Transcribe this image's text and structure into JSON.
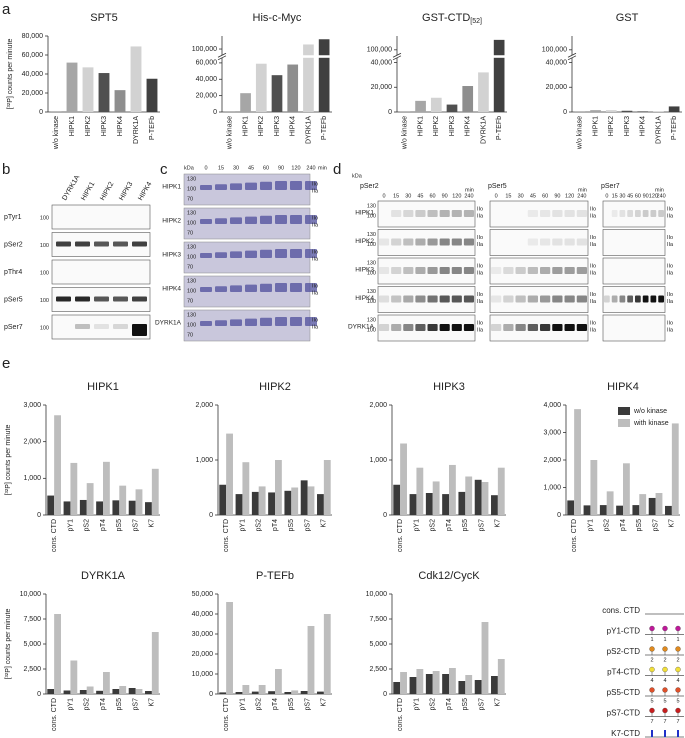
{
  "panel_labels": [
    "a",
    "b",
    "c",
    "d",
    "e"
  ],
  "chart_data": [
    {
      "type": "bar",
      "title": "SPT5",
      "ylabel": "[³²P] counts per minute",
      "categories": [
        "w/o kinase",
        "HIPK1",
        "HIPK2",
        "HIPK3",
        "HIPK4",
        "DYRK1A",
        "P-TEFb"
      ],
      "values": [
        300,
        52000,
        47000,
        41000,
        23000,
        69000,
        35000
      ],
      "colors": [
        "#888888",
        "#a6a6a6",
        "#d2d2d2",
        "#505050",
        "#8e8e8e",
        "#d2d2d2",
        "#404040"
      ],
      "ylim": [
        0,
        80000
      ],
      "yticks": [
        0,
        {
          "value": 20000,
          "label": "20,000"
        },
        {
          "value": 40000,
          "label": "40,000"
        },
        {
          "value": 60000,
          "label": "60,000"
        },
        {
          "value": 80000,
          "label": "80,000"
        }
      ]
    },
    {
      "type": "bar",
      "title": "His-c-Myc",
      "categories": [
        "w/o kinase",
        "HIPK1",
        "HIPK2",
        "HIPK3",
        "HIPK4",
        "DYRK1A",
        "P-TEFb"
      ],
      "values": [
        300,
        23000,
        59000,
        45000,
        58000,
        107000,
        115000
      ],
      "colors": [
        "#888888",
        "#a6a6a6",
        "#d2d2d2",
        "#505050",
        "#8e8e8e",
        "#d2d2d2",
        "#404040"
      ],
      "ylim": [
        0,
        120000
      ],
      "axis_break": [
        65000,
        92000
      ],
      "yticks": [
        0,
        {
          "value": 20000,
          "label": "20,000"
        },
        {
          "value": 40000,
          "label": "40,000"
        },
        {
          "value": 60000,
          "label": "60,000"
        },
        {
          "value": 100000,
          "label": "100,000"
        }
      ]
    },
    {
      "type": "bar",
      "title": "GST-CTD",
      "title_sub": "[52]",
      "categories": [
        "w/o kinase",
        "HIPK1",
        "HIPK2",
        "HIPK3",
        "HIPK4",
        "DYRK1A",
        "P-TEFb"
      ],
      "values": [
        300,
        9000,
        11500,
        6000,
        21000,
        32000,
        118000
      ],
      "colors": [
        "#888888",
        "#a6a6a6",
        "#d2d2d2",
        "#505050",
        "#8e8e8e",
        "#d2d2d2",
        "#404040"
      ],
      "ylim": [
        0,
        125000
      ],
      "axis_break": [
        43000,
        92000
      ],
      "yticks": [
        0,
        {
          "value": 20000,
          "label": "20,000"
        },
        {
          "value": 40000,
          "label": "40,000"
        },
        {
          "value": 100000,
          "label": "100,000"
        }
      ]
    },
    {
      "type": "bar",
      "title": "GST",
      "categories": [
        "w/o kinase",
        "HIPK1",
        "HIPK2",
        "HIPK3",
        "HIPK4",
        "DYRK1A",
        "P-TEFb"
      ],
      "values": [
        300,
        1500,
        1500,
        1000,
        800,
        300,
        4500
      ],
      "colors": [
        "#888888",
        "#a6a6a6",
        "#d2d2d2",
        "#505050",
        "#8e8e8e",
        "#d2d2d2",
        "#404040"
      ],
      "ylim": [
        0,
        125000
      ],
      "axis_break": [
        43000,
        92000
      ],
      "yticks": [
        0,
        {
          "value": 20000,
          "label": "20,000"
        },
        {
          "value": 40000,
          "label": "40,000"
        },
        {
          "value": 100000,
          "label": "100,000"
        }
      ]
    },
    {
      "type": "grouped_bar",
      "title": "HIPK1",
      "ylabel": "[³²P] counts per minute",
      "categories": [
        "cons. CTD",
        "pY1",
        "pS2",
        "pT4",
        "pS5",
        "pS7",
        "K7"
      ],
      "series": [
        {
          "name": "w/o kinase",
          "color": "#3a3a3a",
          "values": [
            530,
            370,
            410,
            370,
            400,
            390,
            350
          ]
        },
        {
          "name": "with kinase",
          "color": "#bdbdbd",
          "values": [
            2720,
            1420,
            870,
            1450,
            800,
            700,
            1260
          ]
        }
      ],
      "ylim": [
        0,
        3000
      ],
      "yticks": [
        0,
        {
          "value": 1000,
          "label": "1,000"
        },
        {
          "value": 2000,
          "label": "2,000"
        },
        {
          "value": 3000,
          "label": "3,000"
        }
      ]
    },
    {
      "type": "grouped_bar",
      "title": "HIPK2",
      "categories": [
        "cons. CTD",
        "pY1",
        "pS2",
        "pT4",
        "pS5",
        "pS7",
        "K7"
      ],
      "series": [
        {
          "name": "w/o kinase",
          "color": "#3a3a3a",
          "values": [
            550,
            380,
            420,
            410,
            440,
            630,
            380
          ]
        },
        {
          "name": "with kinase",
          "color": "#bdbdbd",
          "values": [
            1480,
            960,
            520,
            1000,
            500,
            520,
            1000
          ]
        }
      ],
      "ylim": [
        0,
        2000
      ],
      "yticks": [
        0,
        {
          "value": 1000,
          "label": "1,000"
        },
        {
          "value": 2000,
          "label": "2,000"
        }
      ]
    },
    {
      "type": "grouped_bar",
      "title": "HIPK3",
      "categories": [
        "cons. CTD",
        "pY1",
        "pS2",
        "pT4",
        "pS5",
        "pS7",
        "K7"
      ],
      "series": [
        {
          "name": "w/o kinase",
          "color": "#3a3a3a",
          "values": [
            550,
            380,
            400,
            380,
            420,
            640,
            360
          ]
        },
        {
          "name": "with kinase",
          "color": "#bdbdbd",
          "values": [
            1300,
            860,
            610,
            910,
            700,
            600,
            860
          ]
        }
      ],
      "ylim": [
        0,
        2000
      ],
      "yticks": [
        0,
        {
          "value": 1000,
          "label": "1,000"
        },
        {
          "value": 2000,
          "label": "2,000"
        }
      ]
    },
    {
      "type": "grouped_bar",
      "title": "HIPK4",
      "legend": "top-right",
      "categories": [
        "cons. CTD",
        "pY1",
        "pS2",
        "pT4",
        "pS5",
        "pS7",
        "K7"
      ],
      "series": [
        {
          "name": "w/o kinase",
          "color": "#3a3a3a",
          "values": [
            530,
            350,
            360,
            340,
            360,
            620,
            330
          ]
        },
        {
          "name": "with kinase",
          "color": "#bdbdbd",
          "values": [
            3850,
            2000,
            860,
            1880,
            760,
            800,
            3330
          ]
        }
      ],
      "ylim": [
        0,
        4000
      ],
      "yticks": [
        0,
        {
          "value": 1000,
          "label": "1,000"
        },
        {
          "value": 2000,
          "label": "2,000"
        },
        {
          "value": 3000,
          "label": "3,000"
        },
        {
          "value": 4000,
          "label": "4,000"
        }
      ]
    },
    {
      "type": "grouped_bar",
      "title": "DYRK1A",
      "ylabel": "[³²P] counts per minute",
      "categories": [
        "cons. CTD",
        "pY1",
        "pS2",
        "pT4",
        "pS5",
        "pS7",
        "K7"
      ],
      "series": [
        {
          "name": "w/o kinase",
          "color": "#3a3a3a",
          "values": [
            500,
            350,
            400,
            320,
            500,
            600,
            300
          ]
        },
        {
          "name": "with kinase",
          "color": "#bdbdbd",
          "values": [
            8000,
            3350,
            750,
            2200,
            800,
            500,
            6200
          ]
        }
      ],
      "ylim": [
        0,
        10000
      ],
      "yticks": [
        0,
        {
          "value": 2500,
          "label": "2,500"
        },
        {
          "value": 5000,
          "label": "5,000"
        },
        {
          "value": 7500,
          "label": "7,500"
        },
        {
          "value": 10000,
          "label": "10,000"
        }
      ]
    },
    {
      "type": "grouped_bar",
      "title": "P-TEFb",
      "categories": [
        "cons. CTD",
        "pY1",
        "pS2",
        "pT4",
        "pS5",
        "pS7",
        "K7"
      ],
      "series": [
        {
          "name": "w/o kinase",
          "color": "#3a3a3a",
          "values": [
            800,
            1000,
            1200,
            1400,
            1000,
            1500,
            1200
          ]
        },
        {
          "name": "with kinase",
          "color": "#bdbdbd",
          "values": [
            46000,
            4500,
            4500,
            12500,
            1800,
            34000,
            40000
          ]
        }
      ],
      "ylim": [
        0,
        50000
      ],
      "yticks": [
        0,
        {
          "value": 10000,
          "label": "10,000"
        },
        {
          "value": 20000,
          "label": "20,000"
        },
        {
          "value": 30000,
          "label": "30,000"
        },
        {
          "value": 40000,
          "label": "40,000"
        },
        {
          "value": 50000,
          "label": "50,000"
        }
      ]
    },
    {
      "type": "grouped_bar",
      "title": "Cdk12/CycK",
      "categories": [
        "cons. CTD",
        "pY1",
        "pS2",
        "pT4",
        "pS5",
        "pS7",
        "K7"
      ],
      "series": [
        {
          "name": "w/o kinase",
          "color": "#3a3a3a",
          "values": [
            1200,
            1700,
            2000,
            2000,
            1300,
            1400,
            1800
          ]
        },
        {
          "name": "with kinase",
          "color": "#bdbdbd",
          "values": [
            2200,
            2500,
            2300,
            2600,
            1900,
            7200,
            3500
          ]
        }
      ],
      "ylim": [
        0,
        10000
      ],
      "yticks": [
        0,
        {
          "value": 2500,
          "label": "2,500"
        },
        {
          "value": 5000,
          "label": "5,000"
        },
        {
          "value": 7500,
          "label": "7,500"
        },
        {
          "value": 10000,
          "label": "10,000"
        }
      ]
    }
  ],
  "blots_b": {
    "lanes": [
      "DYRK1A",
      "HIPK1",
      "HIPK2",
      "HIPK3",
      "HIPK4"
    ],
    "rows": [
      "pTyr1",
      "pSer2",
      "pThr4",
      "pSer5",
      "pSer7"
    ],
    "marker": "100"
  },
  "gels_c": {
    "kda_label": "kDa",
    "times": [
      "0",
      "15",
      "30",
      "45",
      "60",
      "90",
      "120",
      "240"
    ],
    "unit": "min",
    "markers": [
      "130",
      "100",
      "70"
    ],
    "rows": [
      "HIPK1",
      "HIPK2",
      "HIPK3",
      "HIPK4",
      "DYRK1A"
    ],
    "bands": [
      "IIo",
      "IIa"
    ]
  },
  "blots_d": {
    "kda_label": "kDa",
    "columns": [
      "pSer2",
      "pSer5",
      "pSer7"
    ],
    "times": [
      "0",
      "15",
      "30",
      "45",
      "60",
      "90",
      "120",
      "240"
    ],
    "unit": "min",
    "markers": [
      "130",
      "100"
    ],
    "rows": [
      "HIPK1",
      "HIPK2",
      "HIPK3",
      "HIPK4",
      "DYRK1A"
    ],
    "bands": [
      "IIo",
      "IIa"
    ]
  },
  "ctd_schematic": {
    "rows": [
      {
        "label": "cons. CTD"
      },
      {
        "label": "pY1-CTD",
        "site": "1",
        "color": "#c0189a"
      },
      {
        "label": "pS2-CTD",
        "site": "2",
        "color": "#e08a1e"
      },
      {
        "label": "pT4-CTD",
        "site": "4",
        "color": "#f2e03a"
      },
      {
        "label": "pS5-CTD",
        "site": "5",
        "color": "#e0502a"
      },
      {
        "label": "pS7-CTD",
        "site": "7",
        "color": "#c81e1e"
      },
      {
        "label": "K7-CTD",
        "site": "K7",
        "color": "#2030c8"
      }
    ]
  }
}
